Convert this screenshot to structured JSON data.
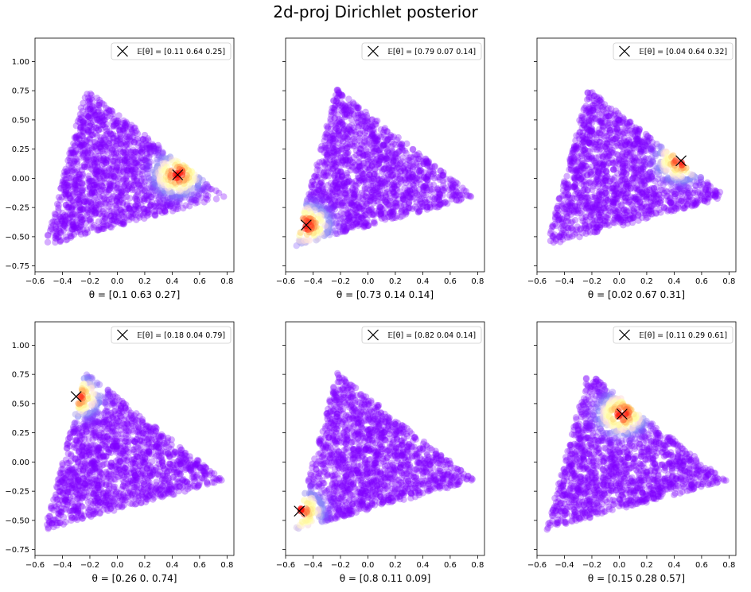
{
  "figure_title": "2d-proj Dirichlet posterior",
  "chart_data": [
    {
      "type": "scatter",
      "xlabel": "θ = [0.1  0.63 0.27]",
      "legend_label": "𝔼[θ] = [0.11 0.64 0.25]",
      "mean_point": {
        "x": 0.44,
        "y": 0.03
      },
      "xlim": [
        -0.6,
        0.85
      ],
      "ylim": [
        -0.8,
        1.2
      ],
      "xticks": [
        "−0.6",
        "−0.4",
        "−0.2",
        "0.0",
        "0.2",
        "0.4",
        "0.6",
        "0.8"
      ],
      "yticks": [
        "−0.75",
        "−0.50",
        "−0.25",
        "0.00",
        "0.25",
        "0.50",
        "0.75",
        "1.00"
      ],
      "show_yticklabels": true,
      "legend_position": "upper-right",
      "colormap": "rainbow"
    },
    {
      "type": "scatter",
      "xlabel": "θ = [0.73 0.14 0.14]",
      "legend_label": "𝔼[θ] = [0.79 0.07 0.14]",
      "mean_point": {
        "x": -0.45,
        "y": -0.4
      },
      "xlim": [
        -0.6,
        0.85
      ],
      "ylim": [
        -0.8,
        1.2
      ],
      "xticks": [
        "−0.6",
        "−0.4",
        "−0.2",
        "0.0",
        "0.2",
        "0.4",
        "0.6",
        "0.8"
      ],
      "yticks": [
        "−0.75",
        "−0.50",
        "−0.25",
        "0.00",
        "0.25",
        "0.50",
        "0.75",
        "1.00"
      ],
      "show_yticklabels": false,
      "legend_position": "upper-right",
      "colormap": "rainbow"
    },
    {
      "type": "scatter",
      "xlabel": "θ = [0.02 0.67 0.31]",
      "legend_label": "𝔼[θ] = [0.04 0.64 0.32]",
      "mean_point": {
        "x": 0.45,
        "y": 0.15
      },
      "xlim": [
        -0.6,
        0.85
      ],
      "ylim": [
        -0.8,
        1.2
      ],
      "xticks": [
        "−0.6",
        "−0.4",
        "−0.2",
        "0.0",
        "0.2",
        "0.4",
        "0.6",
        "0.8"
      ],
      "yticks": [
        "−0.75",
        "−0.50",
        "−0.25",
        "0.00",
        "0.25",
        "0.50",
        "0.75",
        "1.00"
      ],
      "show_yticklabels": false,
      "legend_position": "upper-right",
      "colormap": "rainbow"
    },
    {
      "type": "scatter",
      "xlabel": "θ = [0.26 0.    0.74]",
      "legend_label": "𝔼[θ] = [0.18 0.04 0.79]",
      "mean_point": {
        "x": -0.3,
        "y": 0.56
      },
      "xlim": [
        -0.6,
        0.85
      ],
      "ylim": [
        -0.8,
        1.2
      ],
      "xticks": [
        "−0.6",
        "−0.4",
        "−0.2",
        "0.0",
        "0.2",
        "0.4",
        "0.6",
        "0.8"
      ],
      "yticks": [
        "−0.75",
        "−0.50",
        "−0.25",
        "0.00",
        "0.25",
        "0.50",
        "0.75",
        "1.00"
      ],
      "show_yticklabels": true,
      "legend_position": "upper-right",
      "colormap": "rainbow"
    },
    {
      "type": "scatter",
      "xlabel": "θ = [0.8  0.11 0.09]",
      "legend_label": "𝔼[θ] = [0.82 0.04 0.14]",
      "mean_point": {
        "x": -0.5,
        "y": -0.42
      },
      "xlim": [
        -0.6,
        0.85
      ],
      "ylim": [
        -0.8,
        1.2
      ],
      "xticks": [
        "−0.6",
        "−0.4",
        "−0.2",
        "0.0",
        "0.2",
        "0.4",
        "0.6",
        "0.8"
      ],
      "yticks": [
        "−0.75",
        "−0.50",
        "−0.25",
        "0.00",
        "0.25",
        "0.50",
        "0.75",
        "1.00"
      ],
      "show_yticklabels": false,
      "legend_position": "upper-right",
      "colormap": "rainbow"
    },
    {
      "type": "scatter",
      "xlabel": "θ = [0.15 0.28 0.57]",
      "legend_label": "𝔼[θ] = [0.11 0.29 0.61]",
      "mean_point": {
        "x": 0.02,
        "y": 0.41
      },
      "xlim": [
        -0.6,
        0.85
      ],
      "ylim": [
        -0.8,
        1.2
      ],
      "xticks": [
        "−0.6",
        "−0.4",
        "−0.2",
        "0.0",
        "0.2",
        "0.4",
        "0.6",
        "0.8"
      ],
      "yticks": [
        "−0.75",
        "−0.50",
        "−0.25",
        "0.00",
        "0.25",
        "0.50",
        "0.75",
        "1.00"
      ],
      "show_yticklabels": false,
      "legend_position": "upper-right",
      "colormap": "rainbow"
    }
  ],
  "simplex_vertices": [
    [
      -0.53,
      -0.58
    ],
    [
      -0.23,
      0.77
    ],
    [
      0.78,
      -0.16
    ]
  ],
  "colors": {
    "point_low": "#8000ff",
    "marker": "#000000"
  }
}
